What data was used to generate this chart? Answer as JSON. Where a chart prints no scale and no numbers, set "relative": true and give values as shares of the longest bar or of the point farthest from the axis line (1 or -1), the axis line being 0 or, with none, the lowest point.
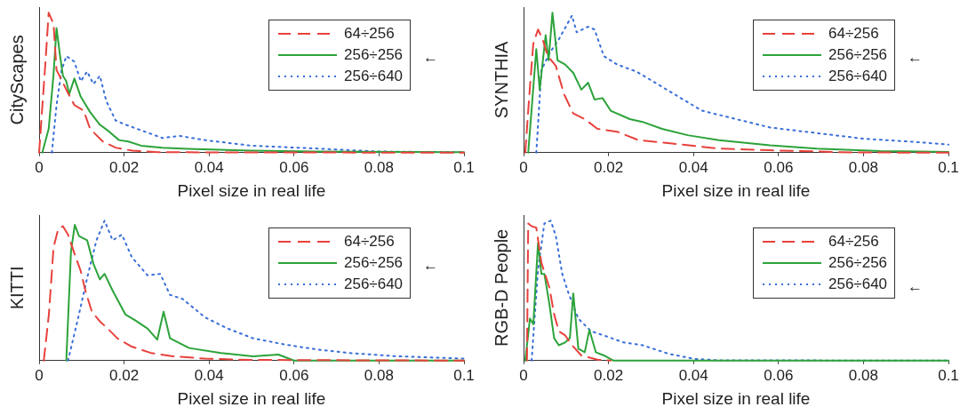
{
  "chart_data": [
    {
      "type": "line",
      "ylabel": "CityScapes",
      "xlabel": "Pixel size in real life",
      "relative": true,
      "xlim": [
        0,
        0.1
      ],
      "xticks": [
        0,
        0.02,
        0.04,
        0.06,
        0.08,
        0.1
      ],
      "legend": "top right",
      "grid": false,
      "marker": "none",
      "annotations": [
        "←"
      ],
      "series": [
        {
          "name": "64÷256",
          "color": "#e8413c",
          "line_style": "dashed",
          "x": [
            0,
            0.0015,
            0.00225,
            0.0034,
            0.0041,
            0.0053,
            0.0064,
            0.0083,
            0.0105,
            0.012,
            0.015,
            0.018,
            0.022,
            0.028,
            0.1
          ],
          "values": [
            0,
            0.65,
            1.0,
            0.92,
            0.59,
            0.52,
            0.45,
            0.34,
            0.3,
            0.17,
            0.08,
            0.036,
            0.014,
            0.003,
            0
          ]
        },
        {
          "name": "256÷256",
          "color": "#2ca33a",
          "line_style": "solid",
          "x": [
            0.00075,
            0.00225,
            0.0034,
            0.0041,
            0.0049,
            0.0056,
            0.0064,
            0.0071,
            0.0083,
            0.0098,
            0.012,
            0.0143,
            0.0165,
            0.0188,
            0.021,
            0.024,
            0.029,
            0.035,
            0.05,
            0.065,
            0.1
          ],
          "values": [
            0,
            0.17,
            0.56,
            0.89,
            0.7,
            0.55,
            0.51,
            0.42,
            0.53,
            0.4,
            0.29,
            0.2,
            0.15,
            0.09,
            0.08,
            0.05,
            0.036,
            0.028,
            0.014,
            0.008,
            0.003
          ]
        },
        {
          "name": "256÷640",
          "color": "#3a6fd8",
          "line_style": "dotted",
          "x": [
            0.003,
            0.0041,
            0.0053,
            0.0064,
            0.0083,
            0.0098,
            0.0113,
            0.0128,
            0.0143,
            0.0158,
            0.018,
            0.0203,
            0.024,
            0.029,
            0.033,
            0.039,
            0.05,
            0.065,
            0.08,
            0.1
          ],
          "values": [
            0,
            0.34,
            0.59,
            0.69,
            0.65,
            0.51,
            0.58,
            0.49,
            0.55,
            0.37,
            0.23,
            0.2,
            0.16,
            0.105,
            0.12,
            0.09,
            0.05,
            0.03,
            0.008,
            0.003
          ]
        }
      ]
    },
    {
      "type": "line",
      "ylabel": "SYNTHIA",
      "xlabel": "Pixel size in real life",
      "relative": true,
      "xlim": [
        0,
        0.1
      ],
      "xticks": [
        0,
        0.02,
        0.04,
        0.06,
        0.08,
        0.1
      ],
      "legend": "top right",
      "grid": false,
      "marker": "none",
      "annotations": [
        "←"
      ],
      "series": [
        {
          "name": "64÷256",
          "color": "#e8413c",
          "line_style": "dashed",
          "x": [
            0.0004,
            0.0015,
            0.0023,
            0.0034,
            0.0045,
            0.0057,
            0.0076,
            0.0095,
            0.0117,
            0.0144,
            0.0174,
            0.022,
            0.027,
            0.035,
            0.046,
            0.058,
            0.077,
            0.1
          ],
          "values": [
            0,
            0.47,
            0.78,
            0.88,
            0.81,
            0.69,
            0.62,
            0.42,
            0.28,
            0.24,
            0.17,
            0.15,
            0.09,
            0.065,
            0.029,
            0.017,
            0.002,
            0
          ]
        },
        {
          "name": "256÷256",
          "color": "#2ca33a",
          "line_style": "solid",
          "x": [
            0.0011,
            0.003,
            0.0038,
            0.0052,
            0.0059,
            0.0068,
            0.008,
            0.0098,
            0.0117,
            0.0136,
            0.0152,
            0.0167,
            0.0186,
            0.0205,
            0.025,
            0.028,
            0.0326,
            0.0386,
            0.046,
            0.058,
            0.069,
            0.084,
            0.1
          ],
          "values": [
            0,
            0.74,
            0.45,
            0.84,
            0.66,
            1.0,
            0.66,
            0.63,
            0.57,
            0.45,
            0.5,
            0.38,
            0.39,
            0.3,
            0.24,
            0.22,
            0.17,
            0.125,
            0.089,
            0.053,
            0.029,
            0.012,
            0.005
          ]
        },
        {
          "name": "256÷640",
          "color": "#3a6fd8",
          "line_style": "dotted",
          "x": [
            0.003,
            0.0042,
            0.0061,
            0.0083,
            0.0114,
            0.0125,
            0.0152,
            0.0167,
            0.0189,
            0.022,
            0.0265,
            0.031,
            0.037,
            0.042,
            0.05,
            0.058,
            0.069,
            0.08,
            0.092,
            0.1
          ],
          "values": [
            0,
            0.59,
            0.71,
            0.81,
            0.98,
            0.86,
            0.9,
            0.88,
            0.69,
            0.63,
            0.58,
            0.5,
            0.39,
            0.3,
            0.24,
            0.18,
            0.14,
            0.1,
            0.077,
            0.058
          ]
        }
      ]
    },
    {
      "type": "line",
      "ylabel": "KITTI",
      "xlabel": "Pixel size in real life",
      "relative": true,
      "xlim": [
        0,
        0.1
      ],
      "xticks": [
        0,
        0.02,
        0.04,
        0.06,
        0.08,
        0.1
      ],
      "legend": "top right",
      "grid": false,
      "marker": "none",
      "annotations": [
        "←"
      ],
      "series": [
        {
          "name": "64÷256",
          "color": "#e8413c",
          "line_style": "dashed",
          "x": [
            0.0011,
            0.0023,
            0.0034,
            0.0045,
            0.0056,
            0.0068,
            0.0086,
            0.0098,
            0.0109,
            0.0124,
            0.0143,
            0.0161,
            0.0184,
            0.0218,
            0.0263,
            0.0315,
            0.039,
            0.05,
            0.1
          ],
          "values": [
            0,
            0.33,
            0.81,
            0.94,
            0.96,
            0.9,
            0.74,
            0.64,
            0.5,
            0.35,
            0.28,
            0.23,
            0.16,
            0.1,
            0.055,
            0.031,
            0.014,
            0.005,
            0
          ]
        },
        {
          "name": "256÷256",
          "color": "#2ca33a",
          "line_style": "solid",
          "x": [
            0.0064,
            0.0075,
            0.0084,
            0.0094,
            0.0113,
            0.0128,
            0.0143,
            0.0154,
            0.0173,
            0.0203,
            0.0225,
            0.0255,
            0.0278,
            0.0293,
            0.0308,
            0.0353,
            0.0428,
            0.0503,
            0.0563,
            0.06,
            0.1
          ],
          "values": [
            0,
            0.78,
            0.97,
            0.89,
            0.86,
            0.69,
            0.58,
            0.62,
            0.5,
            0.33,
            0.29,
            0.23,
            0.15,
            0.35,
            0.16,
            0.09,
            0.055,
            0.031,
            0.043,
            0,
            0
          ]
        },
        {
          "name": "256÷640",
          "color": "#3a6fd8",
          "line_style": "dotted",
          "x": [
            0.0068,
            0.009,
            0.0113,
            0.0135,
            0.0154,
            0.0173,
            0.0195,
            0.0218,
            0.0255,
            0.0285,
            0.0308,
            0.0338,
            0.039,
            0.0443,
            0.0503,
            0.0578,
            0.0653,
            0.0728,
            0.0841,
            0.1
          ],
          "values": [
            0,
            0.28,
            0.59,
            0.86,
            1.0,
            0.86,
            0.9,
            0.74,
            0.61,
            0.62,
            0.47,
            0.44,
            0.31,
            0.23,
            0.16,
            0.115,
            0.08,
            0.055,
            0.031,
            0.014
          ]
        }
      ]
    },
    {
      "type": "line",
      "ylabel": "RGB-D People",
      "xlabel": "Pixel size in real life",
      "relative": true,
      "xlim": [
        0,
        0.1
      ],
      "xticks": [
        0,
        0.02,
        0.04,
        0.06,
        0.08,
        0.1
      ],
      "legend": "top right",
      "grid": false,
      "marker": "none",
      "annotations": [
        "←"
      ],
      "series": [
        {
          "name": "64÷256",
          "color": "#e8413c",
          "line_style": "dashed",
          "x": [
            0.0008,
            0.0011,
            0.0019,
            0.003,
            0.0042,
            0.0061,
            0.0072,
            0.0083,
            0.0098,
            0.0114,
            0.0136,
            0.0174,
            0.0205
          ],
          "values": [
            0,
            0.98,
            0.96,
            0.95,
            0.7,
            0.52,
            0.33,
            0.21,
            0.18,
            0.11,
            0.037,
            0.007,
            0
          ]
        },
        {
          "name": "256÷256",
          "color": "#2ca33a",
          "line_style": "solid",
          "x": [
            0.0004,
            0.0015,
            0.0023,
            0.0034,
            0.0042,
            0.0049,
            0.0061,
            0.0072,
            0.0083,
            0.0098,
            0.0109,
            0.0117,
            0.0129,
            0.0144,
            0.0155,
            0.017,
            0.0189,
            0.0212,
            0.1
          ],
          "values": [
            0,
            0.3,
            0.26,
            0.84,
            0.62,
            0.62,
            0.4,
            0.16,
            0.11,
            0.13,
            0.16,
            0.48,
            0.085,
            0.06,
            0.22,
            0.06,
            0.037,
            0,
            0
          ]
        },
        {
          "name": "256÷640",
          "color": "#3a6fd8",
          "line_style": "dotted",
          "x": [
            0.0019,
            0.0034,
            0.0049,
            0.0064,
            0.0076,
            0.0091,
            0.0106,
            0.0129,
            0.0159,
            0.0189,
            0.0235,
            0.028,
            0.0341,
            0.0402,
            0.0462,
            0.1
          ],
          "values": [
            0,
            0.65,
            0.98,
            1.0,
            0.89,
            0.62,
            0.48,
            0.3,
            0.21,
            0.18,
            0.13,
            0.11,
            0.049,
            0.012,
            0.002,
            0
          ]
        }
      ]
    }
  ]
}
